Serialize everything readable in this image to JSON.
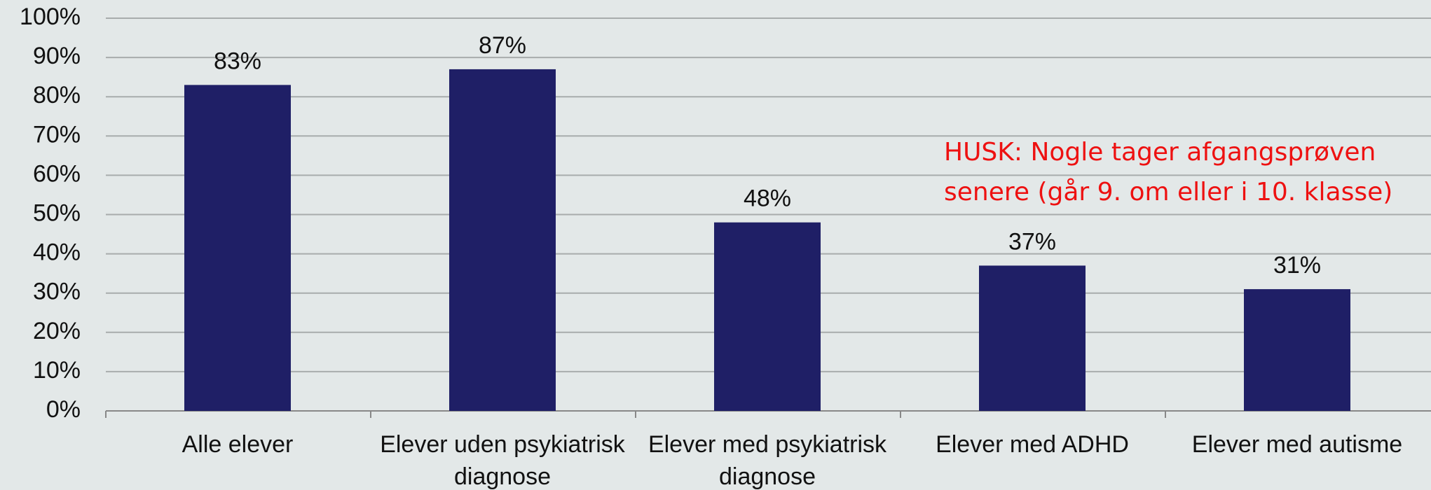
{
  "chart_data": {
    "type": "bar",
    "categories": [
      "Alle elever",
      "Elever uden psykiatrisk diagnose",
      "Elever med psykiatrisk diagnose",
      "Elever med ADHD",
      "Elever med autisme"
    ],
    "values": [
      83,
      87,
      48,
      37,
      31
    ],
    "value_labels": [
      "83%",
      "87%",
      "48%",
      "37%",
      "31%"
    ],
    "color": "#1f1f66",
    "ylim": [
      0,
      100
    ],
    "yticks": [
      {
        "value": 0,
        "label": "0%"
      },
      {
        "value": 10,
        "label": "10%"
      },
      {
        "value": 20,
        "label": "20%"
      },
      {
        "value": 30,
        "label": "30%"
      },
      {
        "value": 40,
        "label": "40%"
      },
      {
        "value": 50,
        "label": "50%"
      },
      {
        "value": 60,
        "label": "60%"
      },
      {
        "value": 70,
        "label": "70%"
      },
      {
        "value": 80,
        "label": "80%"
      },
      {
        "value": 90,
        "label": "90%"
      },
      {
        "value": 100,
        "label": "100%"
      }
    ],
    "grid": true,
    "annotation": [
      "HUSK: Nogle tager afgangsprøven",
      "senere (går 9. om eller i 10. klasse)"
    ],
    "annotation_color": "#ee1111"
  }
}
